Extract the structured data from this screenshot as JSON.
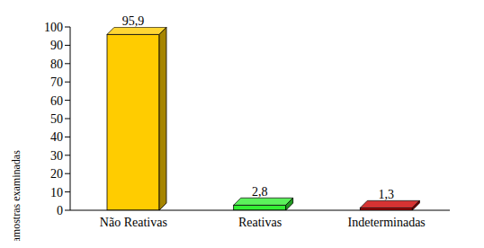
{
  "chart_data": {
    "type": "bar",
    "y_label": "% de amostras examinadas",
    "categories": [
      "Não Reativas",
      "Reativas",
      "Indeterminadas"
    ],
    "values": [
      95.9,
      2.8,
      1.3
    ],
    "value_labels": [
      "95,9",
      "2,8",
      "1,3"
    ],
    "colors": [
      "#ffcc00",
      "#33ee33",
      "#cc0000"
    ],
    "ylim": [
      0,
      100
    ],
    "yticks": [
      0,
      10,
      20,
      30,
      40,
      50,
      60,
      70,
      80,
      90,
      100
    ],
    "data_labels": true,
    "grid": false
  }
}
